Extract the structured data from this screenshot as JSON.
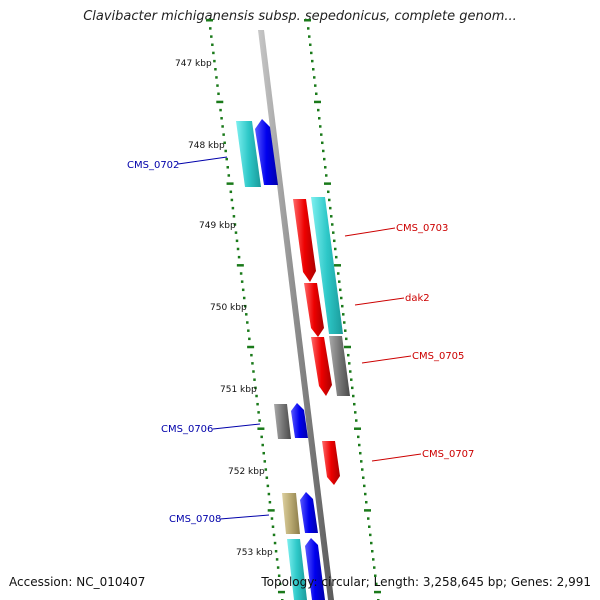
{
  "title": "Clavibacter michiganensis subsp. sepedonicus, complete genom...",
  "footer": {
    "accession": "Accession: NC_010407",
    "topology": "Topology: circular; Length: 3,258,645 bp; Genes: 2,991"
  },
  "scale_labels": [
    "747 kbp",
    "748 kbp",
    "749 kbp",
    "750 kbp",
    "751 kbp",
    "752 kbp",
    "753 kbp"
  ],
  "gene_labels": [
    {
      "text": "CMS_0702",
      "color": "#0000aa"
    },
    {
      "text": "CMS_0703",
      "color": "#cc0000"
    },
    {
      "text": "dak2",
      "color": "#cc0000"
    },
    {
      "text": "CMS_0705",
      "color": "#cc0000"
    },
    {
      "text": "CMS_0706",
      "color": "#0000aa"
    },
    {
      "text": "CMS_0707",
      "color": "#cc0000"
    },
    {
      "text": "CMS_0708",
      "color": "#0000aa"
    }
  ],
  "colors": {
    "backbone": "#8c8c8c",
    "tick": "#1a7a1a",
    "cyan": "#33cccc",
    "blue": "#0000ee",
    "red": "#ee0000",
    "gray": "#777777",
    "khaki": "#b8a870",
    "label_forward": "#0000aa",
    "label_reverse": "#cc0000"
  }
}
